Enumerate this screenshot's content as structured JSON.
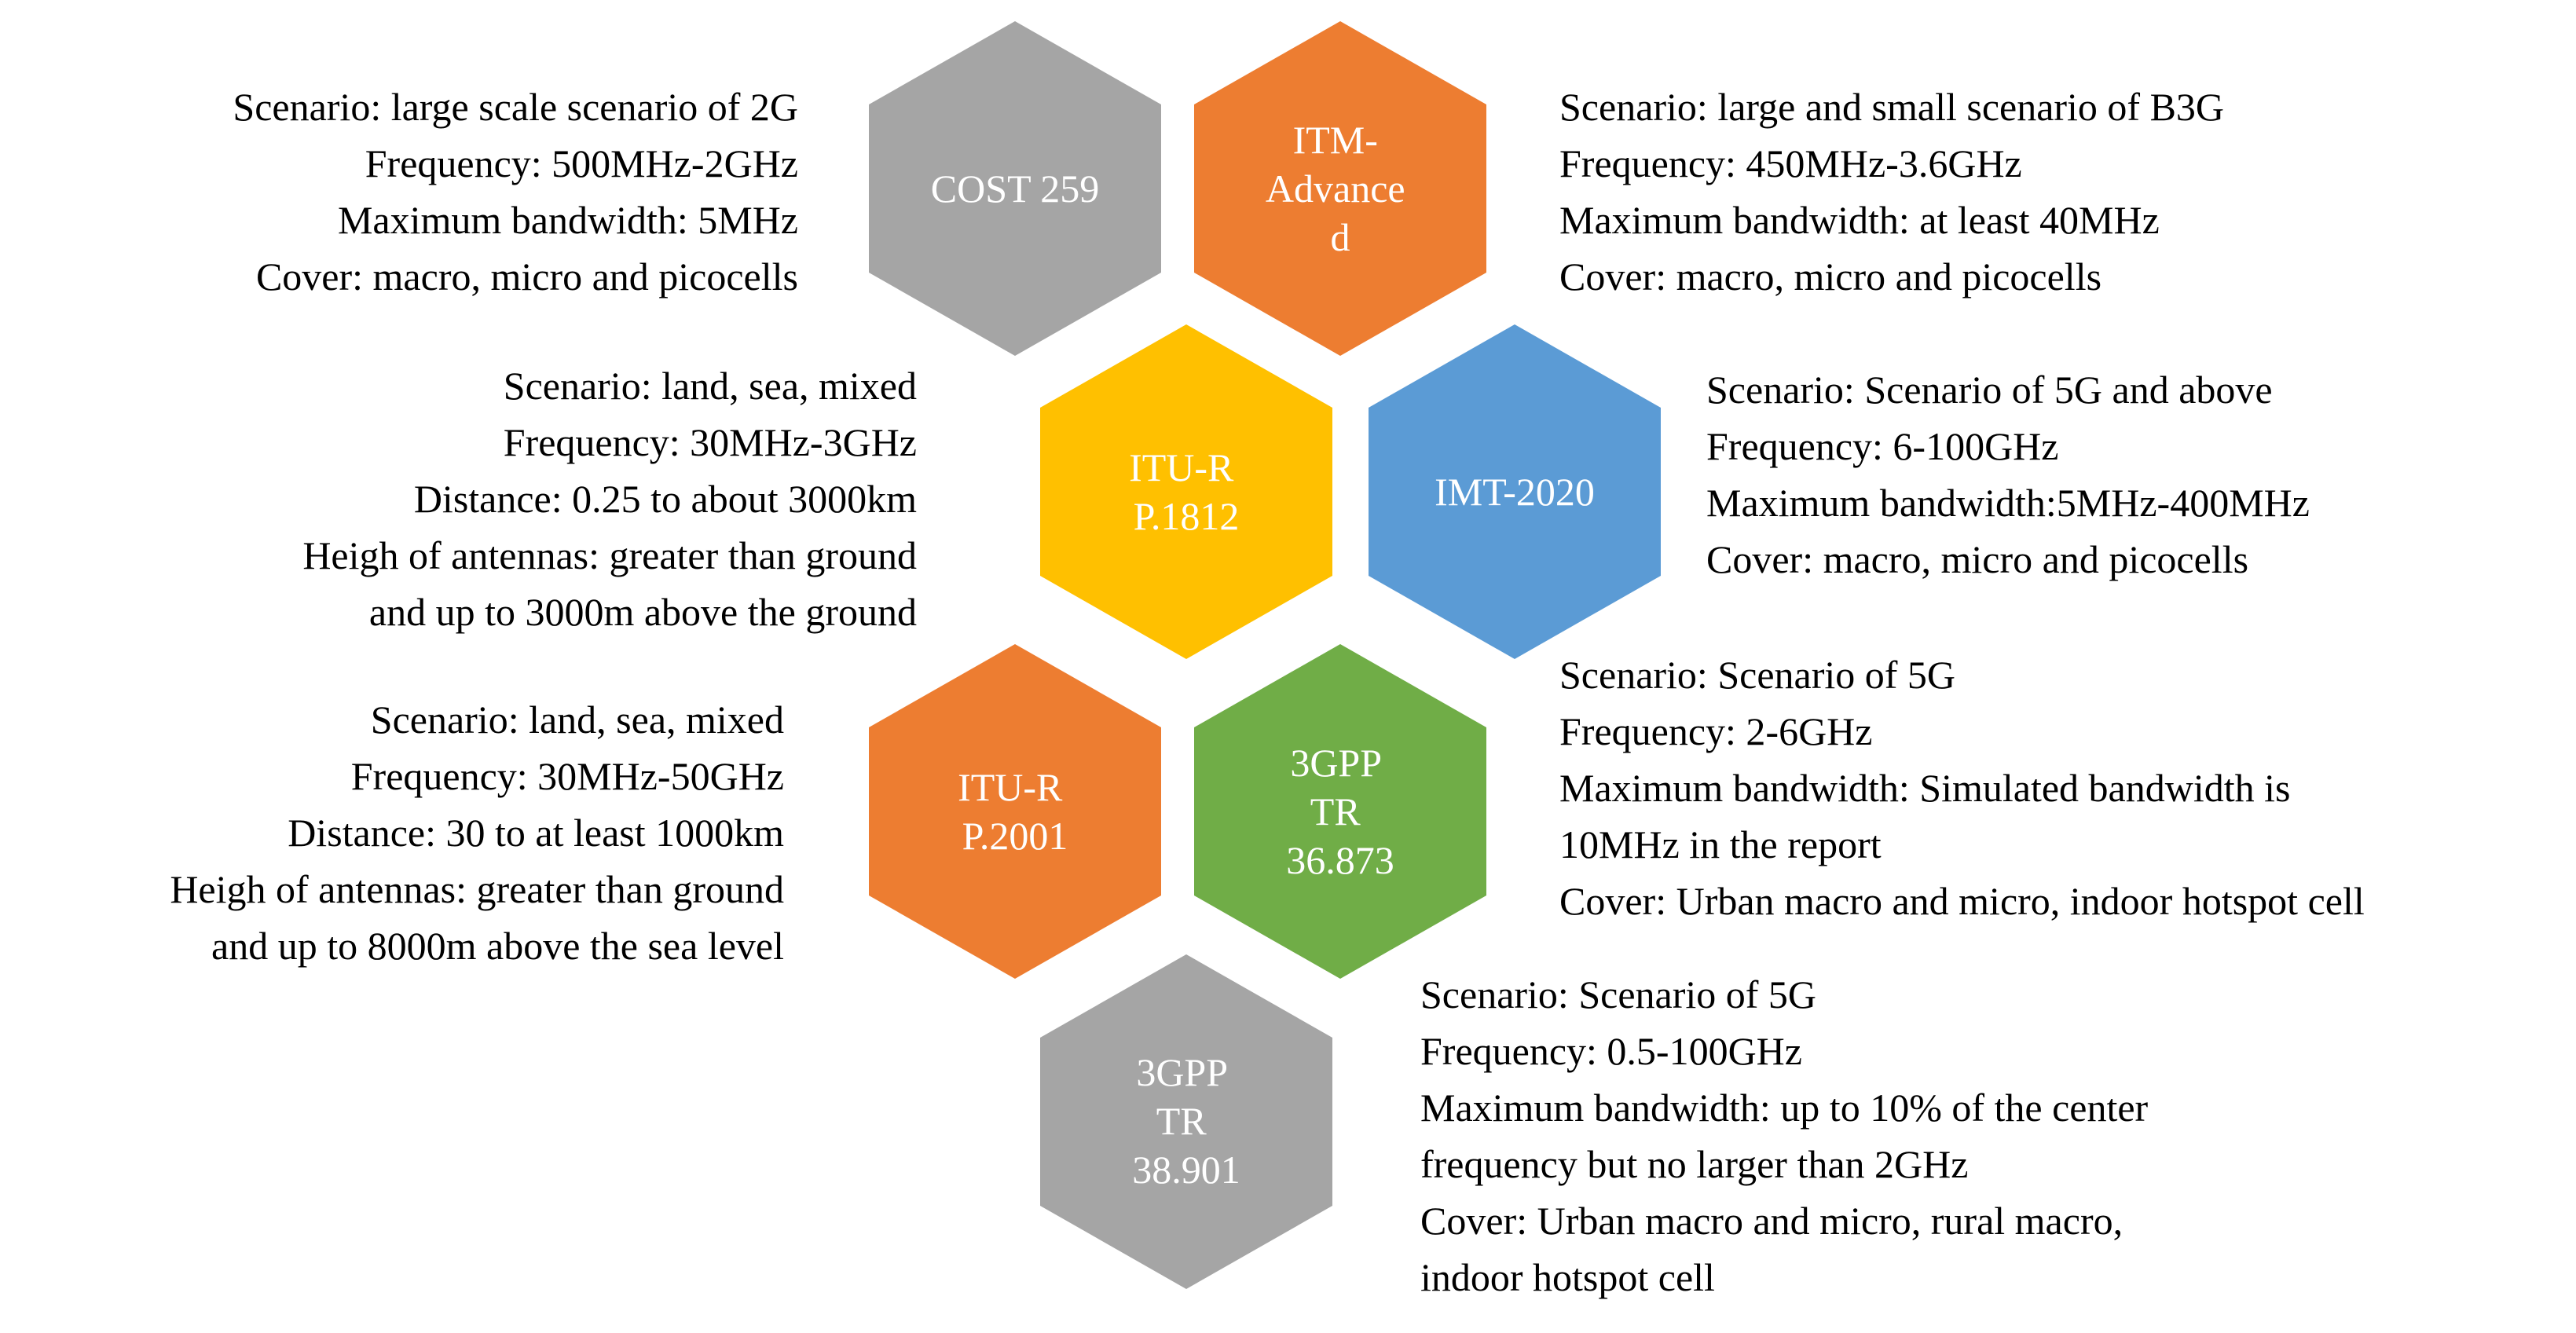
{
  "colors": {
    "gray": "#A5A5A5",
    "orange": "#ED7D31",
    "yellow": "#FFC000",
    "blue": "#5B9BD5",
    "green": "#70AD47"
  },
  "hexagons": [
    {
      "id": "cost259",
      "color": "#A5A5A5",
      "lines": [
        "COST 259"
      ]
    },
    {
      "id": "itm_advanced",
      "color": "#ED7D31",
      "lines": [
        "ITM-",
        "Advance",
        "d"
      ]
    },
    {
      "id": "itur_p1812",
      "color": "#FFC000",
      "lines": [
        "ITU-R",
        "P.1812"
      ]
    },
    {
      "id": "imt2020",
      "color": "#5B9BD5",
      "lines": [
        "IMT-2020"
      ]
    },
    {
      "id": "itur_p2001",
      "color": "#ED7D31",
      "lines": [
        "ITU-R",
        "P.2001"
      ]
    },
    {
      "id": "tr36873",
      "color": "#70AD47",
      "lines": [
        "3GPP",
        "TR",
        "36.873"
      ]
    },
    {
      "id": "tr38901",
      "color": "#A5A5A5",
      "lines": [
        "3GPP",
        "TR",
        "38.901"
      ]
    }
  ],
  "descriptions": {
    "cost259": [
      "Scenario: large scale scenario of 2G",
      "Frequency: 500MHz-2GHz",
      "Maximum bandwidth: 5MHz",
      "Cover: macro, micro and picocells"
    ],
    "itm_advanced": [
      "Scenario: large and small scenario of B3G",
      "Frequency: 450MHz-3.6GHz",
      "Maximum bandwidth: at least 40MHz",
      "Cover: macro, micro and picocells"
    ],
    "itur_p1812": [
      "Scenario: land, sea, mixed",
      "Frequency: 30MHz-3GHz",
      "Distance: 0.25 to about 3000km",
      "Heigh of antennas: greater than ground",
      "and up to 3000m above the ground"
    ],
    "imt2020": [
      "Scenario: Scenario of 5G and above",
      "Frequency: 6-100GHz",
      "Maximum bandwidth:5MHz-400MHz",
      "Cover: macro, micro and picocells"
    ],
    "itur_p2001": [
      "Scenario: land, sea, mixed",
      "Frequency: 30MHz-50GHz",
      "Distance: 30 to at least 1000km",
      "Heigh of antennas: greater than ground",
      "and up to 8000m above the sea level"
    ],
    "tr36873": [
      "Scenario: Scenario of 5G",
      "Frequency: 2-6GHz",
      "Maximum bandwidth: Simulated bandwidth is",
      "10MHz in the report",
      "Cover: Urban macro and micro, indoor hotspot cell"
    ],
    "tr38901": [
      "Scenario: Scenario of 5G",
      "Frequency: 0.5-100GHz",
      "Maximum bandwidth: up to 10% of the center",
      "frequency but no larger than 2GHz",
      "Cover: Urban macro and micro, rural macro,",
      "indoor hotspot cell"
    ]
  }
}
